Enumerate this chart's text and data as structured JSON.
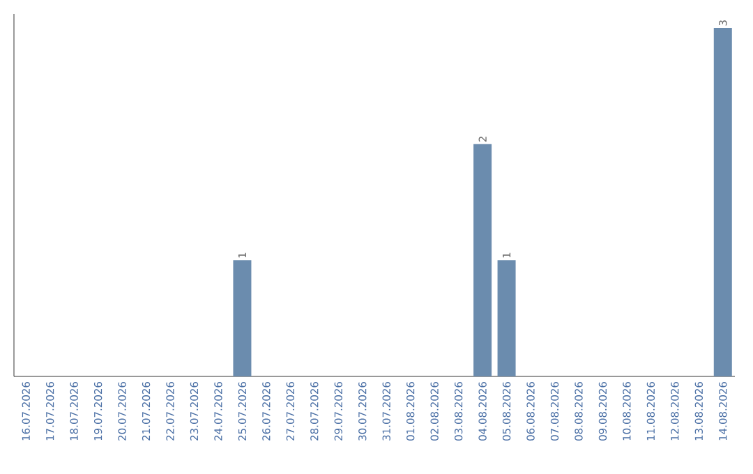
{
  "chart_data": {
    "type": "bar",
    "categories": [
      "16.07.2026",
      "17.07.2026",
      "18.07.2026",
      "19.07.2026",
      "20.07.2026",
      "21.07.2026",
      "22.07.2026",
      "23.07.2026",
      "24.07.2026",
      "25.07.2026",
      "26.07.2026",
      "27.07.2026",
      "28.07.2026",
      "29.07.2026",
      "30.07.2026",
      "31.07.2026",
      "01.08.2026",
      "02.08.2026",
      "03.08.2026",
      "04.08.2026",
      "05.08.2026",
      "06.08.2026",
      "07.08.2026",
      "08.08.2026",
      "09.08.2026",
      "10.08.2026",
      "11.08.2026",
      "12.08.2026",
      "13.08.2026",
      "14.08.2026"
    ],
    "values": [
      null,
      null,
      null,
      null,
      null,
      null,
      null,
      null,
      null,
      1,
      null,
      null,
      null,
      null,
      null,
      null,
      null,
      null,
      null,
      2,
      1,
      null,
      null,
      null,
      null,
      null,
      null,
      null,
      null,
      3
    ],
    "color": "#6b8cae",
    "data_labels": true,
    "tick_labels": "x"
  }
}
